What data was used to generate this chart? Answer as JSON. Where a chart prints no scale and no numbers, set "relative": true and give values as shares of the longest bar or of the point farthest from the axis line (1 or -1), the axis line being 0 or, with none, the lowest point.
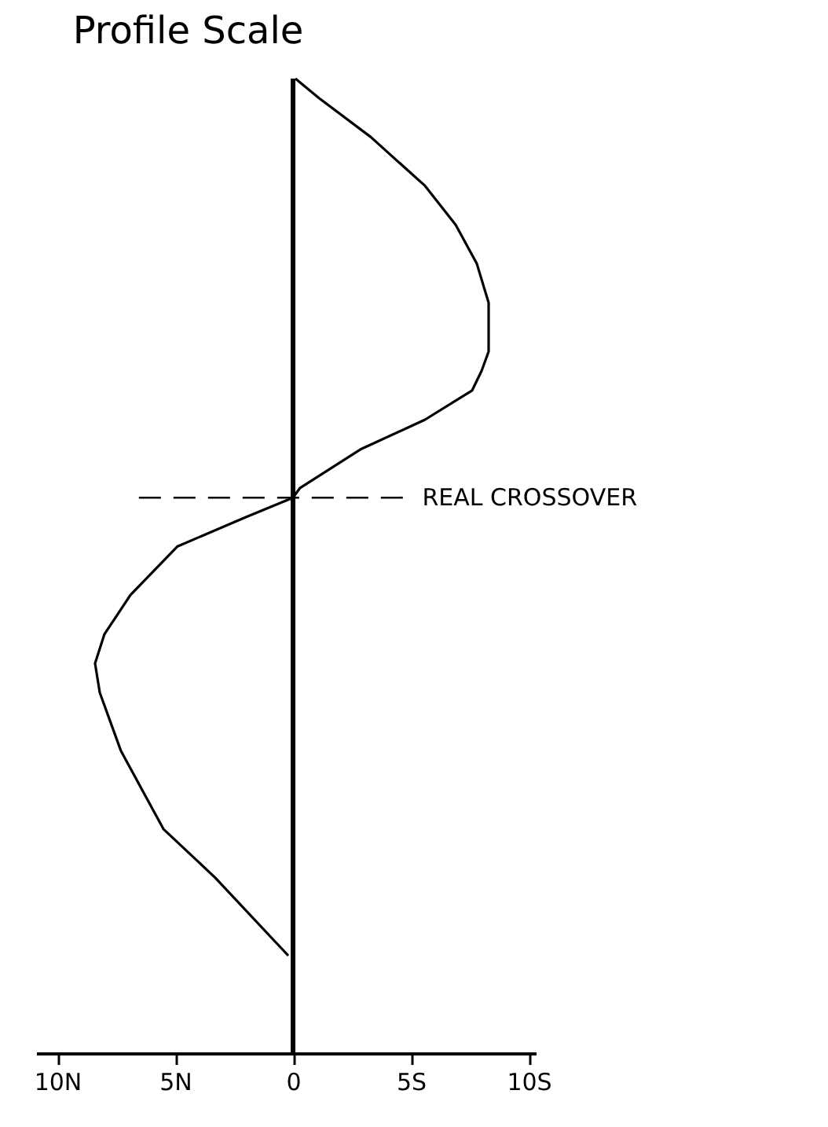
{
  "chart_data": {
    "type": "line",
    "title": "Profile Scale",
    "relative": true,
    "x": [
      0.1,
      1.1,
      3.3,
      5.6,
      6.9,
      7.8,
      8.3,
      8.3,
      8.0,
      7.6,
      5.6,
      2.9,
      0.3,
      0,
      -2.0,
      -4.9,
      -6.9,
      -8.0,
      -8.4,
      -8.2,
      -7.3,
      -5.5,
      -3.3,
      -0.2
    ],
    "values": [
      1.0,
      0.98,
      0.94,
      0.89,
      0.85,
      0.81,
      0.77,
      0.72,
      0.7,
      0.68,
      0.65,
      0.62,
      0.58,
      0.57,
      0.55,
      0.52,
      0.47,
      0.43,
      0.4,
      0.37,
      0.31,
      0.23,
      0.18,
      0.1
    ],
    "color": "#000000",
    "xlim": [
      -10.9,
      10.3
    ],
    "xticks": [
      {
        "value": -10,
        "label": "10N"
      },
      {
        "value": -5,
        "label": "5N"
      },
      0,
      {
        "value": 5,
        "label": "5S"
      },
      {
        "value": 10,
        "label": "10S"
      }
    ],
    "ref_lines": [
      {
        "axis": "x",
        "value": 0
      },
      {
        "axis": "y",
        "value": 0.57,
        "label": "REAL CROSSOVER",
        "line_style": "dashed"
      }
    ],
    "grid": false,
    "marker": "none",
    "line_style": "solid"
  }
}
